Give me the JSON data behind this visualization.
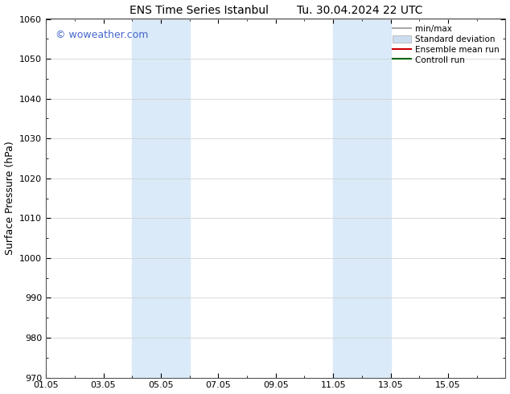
{
  "title_left": "ENS Time Series Istanbul",
  "title_right": "Tu. 30.04.2024 22 UTC",
  "ylabel": "Surface Pressure (hPa)",
  "ylim": [
    970,
    1060
  ],
  "yticks": [
    970,
    980,
    990,
    1000,
    1010,
    1020,
    1030,
    1040,
    1050,
    1060
  ],
  "xtick_labels": [
    "01.05",
    "03.05",
    "05.05",
    "07.05",
    "09.05",
    "11.05",
    "13.05",
    "15.05"
  ],
  "xtick_positions": [
    0,
    2,
    4,
    6,
    8,
    10,
    12,
    14
  ],
  "xlim": [
    0,
    16
  ],
  "shaded_bands": [
    {
      "x_start": 3.0,
      "x_end": 5.0
    },
    {
      "x_start": 10.0,
      "x_end": 12.0
    }
  ],
  "shaded_color": "#daeaf8",
  "watermark_text": "© woweather.com",
  "watermark_color": "#4466cc",
  "legend_items": [
    {
      "label": "min/max",
      "type": "line",
      "color": "#aaaaaa",
      "lw": 1.5
    },
    {
      "label": "Standard deviation",
      "type": "box",
      "color": "#ccddf0",
      "lw": 6
    },
    {
      "label": "Ensemble mean run",
      "type": "line",
      "color": "#cc0000",
      "lw": 1.5
    },
    {
      "label": "Controll run",
      "type": "line",
      "color": "#006600",
      "lw": 1.5
    }
  ],
  "bg_color": "#ffffff",
  "grid_color": "#cccccc",
  "spine_color": "#555555",
  "title_fontsize": 10,
  "label_fontsize": 9,
  "tick_fontsize": 8,
  "legend_fontsize": 7.5
}
